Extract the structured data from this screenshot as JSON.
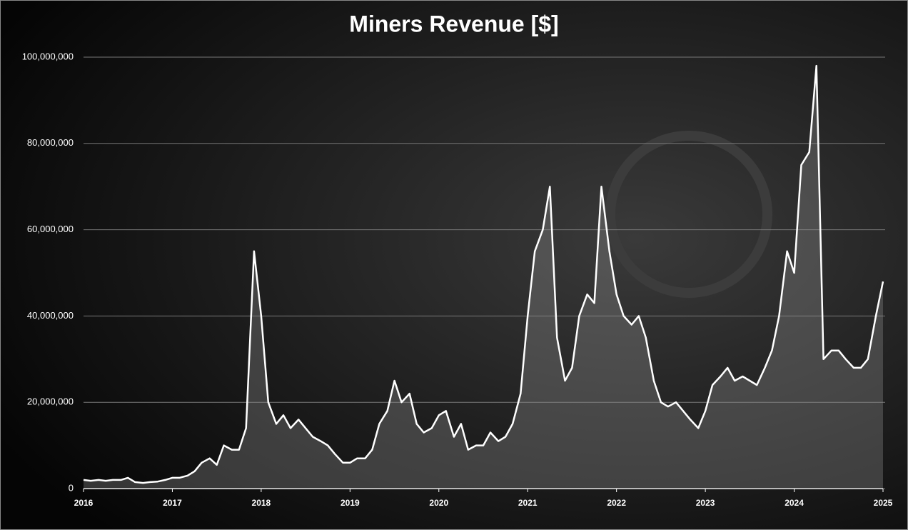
{
  "chart_data": {
    "type": "line",
    "title": "Miners Revenue [$]",
    "x": [
      2016.0,
      2016.08,
      2016.17,
      2016.25,
      2016.33,
      2016.42,
      2016.5,
      2016.58,
      2016.67,
      2016.75,
      2016.83,
      2016.92,
      2017.0,
      2017.08,
      2017.17,
      2017.25,
      2017.33,
      2017.42,
      2017.5,
      2017.58,
      2017.67,
      2017.75,
      2017.83,
      2017.92,
      2018.0,
      2018.08,
      2018.17,
      2018.25,
      2018.33,
      2018.42,
      2018.5,
      2018.58,
      2018.67,
      2018.75,
      2018.83,
      2018.92,
      2019.0,
      2019.08,
      2019.17,
      2019.25,
      2019.33,
      2019.42,
      2019.5,
      2019.58,
      2019.67,
      2019.75,
      2019.83,
      2019.92,
      2020.0,
      2020.08,
      2020.17,
      2020.25,
      2020.33,
      2020.42,
      2020.5,
      2020.58,
      2020.67,
      2020.75,
      2020.83,
      2020.92,
      2021.0,
      2021.08,
      2021.17,
      2021.25,
      2021.33,
      2021.42,
      2021.5,
      2021.58,
      2021.67,
      2021.75,
      2021.83,
      2021.92,
      2022.0,
      2022.08,
      2022.17,
      2022.25,
      2022.33,
      2022.42,
      2022.5,
      2022.58,
      2022.67,
      2022.75,
      2022.83,
      2022.92,
      2023.0,
      2023.08,
      2023.17,
      2023.25,
      2023.33,
      2023.42,
      2023.5,
      2023.58,
      2023.67,
      2023.75,
      2023.83,
      2023.92,
      2024.0,
      2024.08,
      2024.17,
      2024.25,
      2024.33,
      2024.42,
      2024.5,
      2024.58,
      2024.67,
      2024.75,
      2024.83,
      2024.92,
      2025.0
    ],
    "values": [
      2000000,
      1800000,
      2000000,
      1800000,
      2000000,
      2000000,
      2500000,
      1500000,
      1300000,
      1500000,
      1600000,
      2000000,
      2500000,
      2500000,
      3000000,
      4000000,
      6000000,
      7000000,
      5500000,
      10000000,
      9000000,
      9000000,
      14000000,
      55000000,
      40000000,
      20000000,
      15000000,
      17000000,
      14000000,
      16000000,
      14000000,
      12000000,
      11000000,
      10000000,
      8000000,
      6000000,
      6000000,
      7000000,
      7000000,
      9000000,
      15000000,
      18000000,
      25000000,
      20000000,
      22000000,
      15000000,
      13000000,
      14000000,
      17000000,
      18000000,
      12000000,
      15000000,
      9000000,
      10000000,
      10000000,
      13000000,
      11000000,
      12000000,
      15000000,
      22000000,
      40000000,
      55000000,
      60000000,
      70000000,
      35000000,
      25000000,
      28000000,
      40000000,
      45000000,
      43000000,
      70000000,
      55000000,
      45000000,
      40000000,
      38000000,
      40000000,
      35000000,
      25000000,
      20000000,
      19000000,
      20000000,
      18000000,
      16000000,
      14000000,
      18000000,
      24000000,
      26000000,
      28000000,
      25000000,
      26000000,
      25000000,
      24000000,
      28000000,
      32000000,
      40000000,
      55000000,
      50000000,
      75000000,
      78000000,
      98000000,
      30000000,
      32000000,
      32000000,
      30000000,
      28000000,
      28000000,
      30000000,
      40000000,
      48000000
    ],
    "color": "#ffffff",
    "xlim": [
      2016,
      2025
    ],
    "xticks": [
      2016,
      2017,
      2018,
      2019,
      2020,
      2021,
      2022,
      2023,
      2024,
      2025
    ],
    "ylim": [
      0,
      100000000
    ],
    "yticks": [
      0,
      {
        "value": 20000000,
        "label": "20,000,000"
      },
      {
        "value": 40000000,
        "label": "40,000,000"
      },
      {
        "value": 60000000,
        "label": "60,000,000"
      },
      {
        "value": 80000000,
        "label": "80,000,000"
      },
      {
        "value": 100000000,
        "label": "100,000,000"
      }
    ],
    "grid": true
  }
}
